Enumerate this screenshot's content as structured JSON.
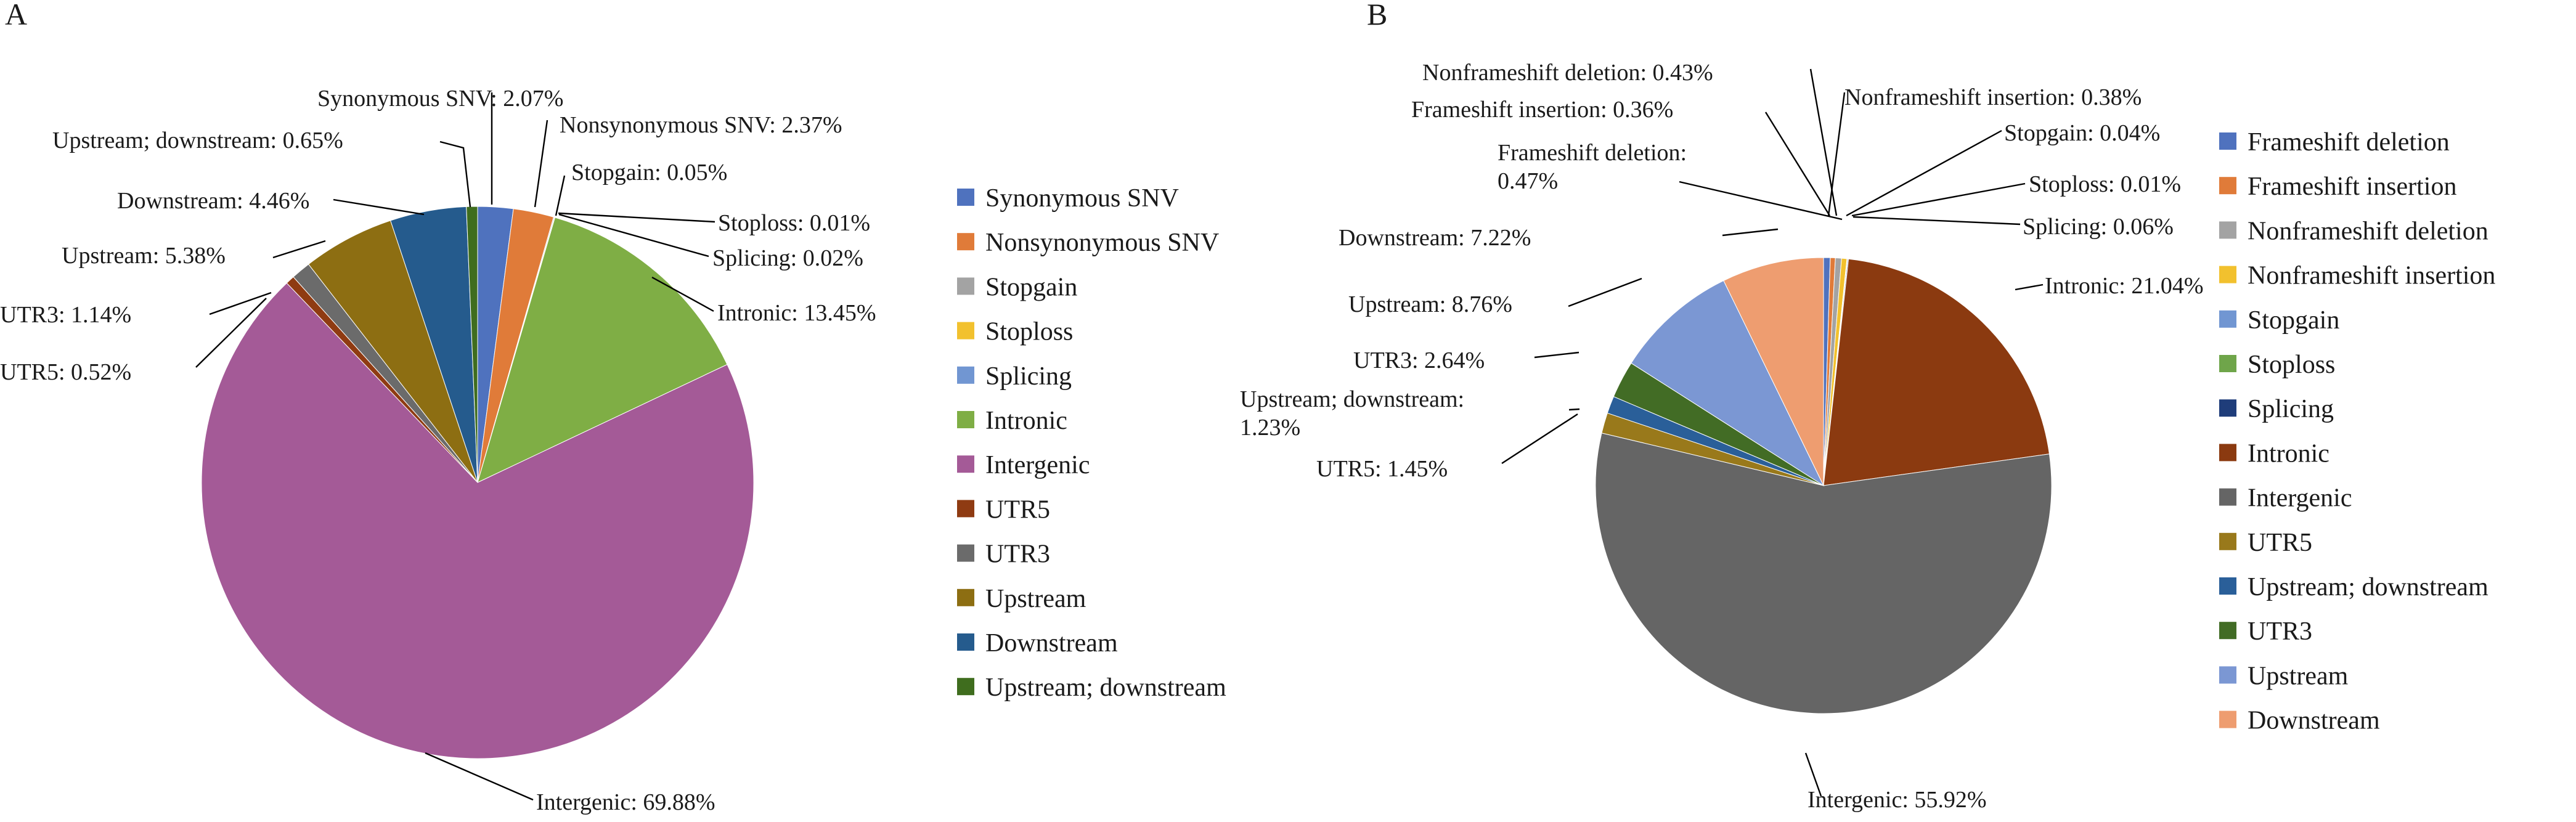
{
  "chart_data": [
    {
      "panel": "A",
      "type": "pie",
      "slices": [
        {
          "name": "Synonymous SNV",
          "value": 2.07,
          "label": "Synonymous SNV: 2.07%",
          "color": "#4f72be"
        },
        {
          "name": "Nonsynonymous SNV",
          "value": 2.37,
          "label": "Nonsynonymous SNV: 2.37%",
          "color": "#e07b39"
        },
        {
          "name": "Stopgain",
          "value": 0.05,
          "label": "Stopgain: 0.05%",
          "color": "#a3a3a3"
        },
        {
          "name": "Stoploss",
          "value": 0.01,
          "label": "Stoploss: 0.01%",
          "color": "#f2c12e"
        },
        {
          "name": "Splicing",
          "value": 0.02,
          "label": "Splicing: 0.02%",
          "color": "#7196d2"
        },
        {
          "name": "Intronic",
          "value": 13.45,
          "label": "Intronic: 13.45%",
          "color": "#7fae45"
        },
        {
          "name": "Intergenic",
          "value": 69.88,
          "label": "Intergenic: 69.88%",
          "color": "#a45a97"
        },
        {
          "name": "UTR5",
          "value": 0.52,
          "label": "UTR5: 0.52%",
          "color": "#8f3b12"
        },
        {
          "name": "UTR3",
          "value": 1.14,
          "label": "UTR3: 1.14%",
          "color": "#6b6b6b"
        },
        {
          "name": "Upstream",
          "value": 5.38,
          "label": "Upstream: 5.38%",
          "color": "#8d6e12"
        },
        {
          "name": "Downstream",
          "value": 4.46,
          "label": "Downstream: 4.46%",
          "color": "#255b8d"
        },
        {
          "name": "Upstream; downstream",
          "value": 0.65,
          "label": "Upstream; downstream: 0.65%",
          "color": "#3f6d1e"
        }
      ]
    },
    {
      "panel": "B",
      "type": "pie",
      "slices": [
        {
          "name": "Frameshift deletion",
          "value": 0.47,
          "label": "Frameshift deletion:\n0.47%",
          "color": "#4f72be"
        },
        {
          "name": "Frameshift insertion",
          "value": 0.36,
          "label": "Frameshift insertion: 0.36%",
          "color": "#e07b39"
        },
        {
          "name": "Nonframeshift deletion",
          "value": 0.43,
          "label": "Nonframeshift deletion: 0.43%",
          "color": "#a3a3a3"
        },
        {
          "name": "Nonframeshift insertion",
          "value": 0.38,
          "label": "Nonframeshift insertion: 0.38%",
          "color": "#f2c12e"
        },
        {
          "name": "Stopgain",
          "value": 0.04,
          "label": "Stopgain: 0.04%",
          "color": "#7196d2"
        },
        {
          "name": "Stoploss",
          "value": 0.01,
          "label": "Stoploss: 0.01%",
          "color": "#6fa54a"
        },
        {
          "name": "Splicing",
          "value": 0.06,
          "label": "Splicing: 0.06%",
          "color": "#1f3d7a"
        },
        {
          "name": "Intronic",
          "value": 21.04,
          "label": "Intronic: 21.04%",
          "color": "#8b3a10"
        },
        {
          "name": "Intergenic",
          "value": 55.92,
          "label": "Intergenic: 55.92%",
          "color": "#656565"
        },
        {
          "name": "UTR5",
          "value": 1.45,
          "label": "UTR5: 1.45%",
          "color": "#99791b"
        },
        {
          "name": "Upstream; downstream",
          "value": 1.23,
          "label": "Upstream; downstream:\n1.23%",
          "color": "#2a5f99"
        },
        {
          "name": "UTR3",
          "value": 2.64,
          "label": "UTR3: 2.64%",
          "color": "#426c25"
        },
        {
          "name": "Upstream",
          "value": 8.76,
          "label": "Upstream: 8.76%",
          "color": "#7b97d3"
        },
        {
          "name": "Downstream",
          "value": 7.22,
          "label": "Downstream: 7.22%",
          "color": "#ee9d70"
        }
      ]
    }
  ]
}
